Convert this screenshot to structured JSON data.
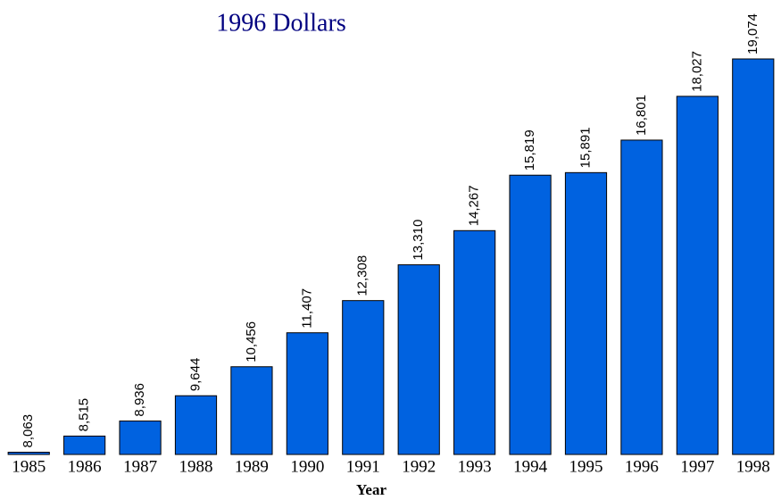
{
  "chart_data": {
    "type": "bar",
    "title": "1996 Dollars",
    "x_label": "Year",
    "categories": [
      "1985",
      "1986",
      "1987",
      "1988",
      "1989",
      "1990",
      "1991",
      "1992",
      "1993",
      "1994",
      "1995",
      "1996",
      "1997",
      "1998"
    ],
    "values": [
      8063,
      8515,
      8936,
      9644,
      10456,
      11407,
      12308,
      13310,
      14267,
      15819,
      15891,
      16801,
      18027,
      19074
    ],
    "value_labels": [
      "8,063",
      "8,515",
      "8,936",
      "9,644",
      "10,456",
      "11,407",
      "12,308",
      "13,310",
      "14,267",
      "15,819",
      "15,891",
      "16,801",
      "18,027",
      "19,074"
    ],
    "color": "#0062e0",
    "ylim": [
      8000,
      19074
    ]
  }
}
